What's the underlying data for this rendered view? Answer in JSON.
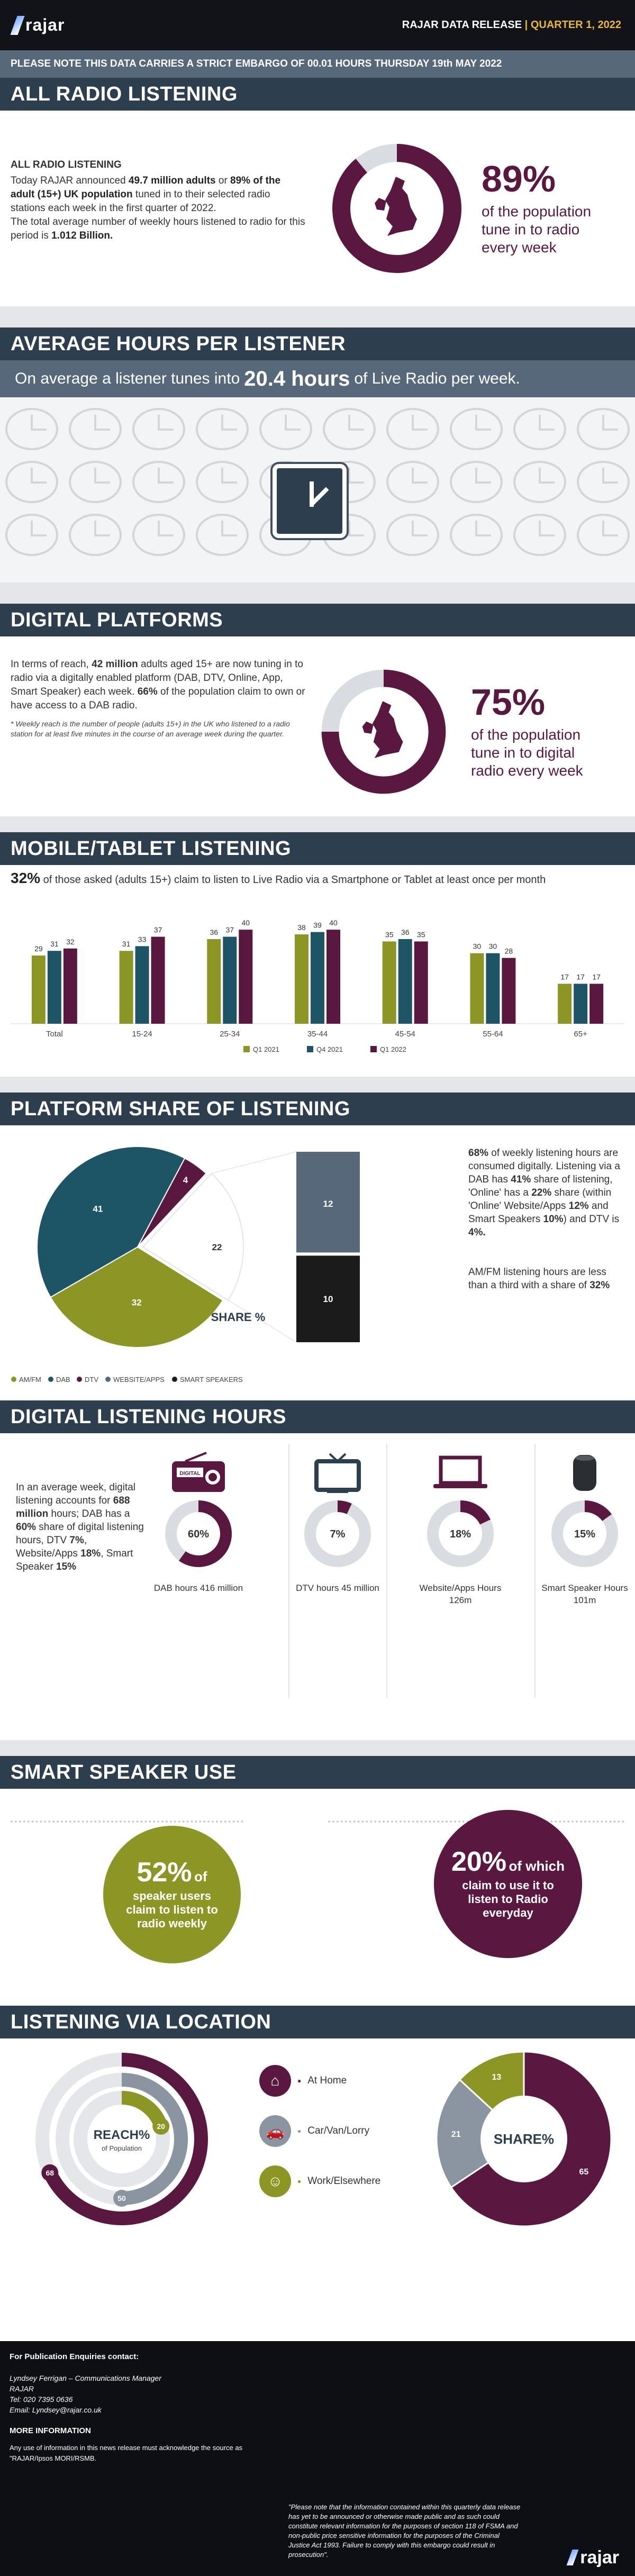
{
  "header": {
    "logo_text": "rajar",
    "release_label": "RAJAR DATA RELEASE",
    "quarter_label": "QUARTER 1, 2022"
  },
  "embargo": "PLEASE NOTE THIS DATA CARRIES A STRICT EMBARGO OF 00.01 HOURS THURSDAY 19th MAY 2022",
  "all_radio": {
    "title": "ALL RADIO LISTENING",
    "subtitle": "ALL RADIO LISTENING",
    "para1_a": "Today RAJAR announced ",
    "para1_b": "49.7 million adults",
    "para1_c": " or ",
    "para1_d": "89% of the adult (15+) UK population",
    "para1_e": " tuned in to their selected radio stations each week in the first quarter of 2022.",
    "para2_a": "The total average number of weekly hours listened to radio for this period is ",
    "para2_b": "1.012 Billion.",
    "pct": "89%",
    "pct_text": "of the population tune in to radio every week",
    "pct_value": 89
  },
  "avg_hours": {
    "title": "AVERAGE HOURS PER LISTENER",
    "text_a": "On average a listener tunes into",
    "text_b": "20.4 hours",
    "text_c": "of Live Radio per week."
  },
  "digital": {
    "title": "DIGITAL PLATFORMS",
    "para_a": "In terms of reach, ",
    "para_b": "42 million",
    "para_c": " adults aged 15+ are now tuning in to radio via a digitally enabled platform (DAB, DTV, Online, App, Smart Speaker) each week. ",
    "para_d": "66%",
    "para_e": " of the population claim to own or have access to a DAB radio.",
    "footnote": "* Weekly reach is the number of people (adults 15+) in the UK who listened to a radio station for at least five minutes in the course of an average week during the quarter.",
    "pct": "75%",
    "pct_text": "of the population tune in to digital radio every week",
    "pct_value": 75
  },
  "mobile": {
    "title": "MOBILE/TABLET LISTENING",
    "intro_a": "32%",
    "intro_b": " of those asked (adults 15+) claim to listen to Live Radio via a Smartphone or Tablet at least once per month"
  },
  "chart_data": [
    {
      "type": "bar",
      "categories": [
        "Total",
        "15-24",
        "25-34",
        "35-44",
        "45-54",
        "55-64",
        "65+"
      ],
      "series": [
        {
          "name": "Q1 2021",
          "values": [
            29,
            31,
            36,
            38,
            35,
            30,
            17
          ],
          "color": "#8c9624"
        },
        {
          "name": "Q4 2021",
          "values": [
            31,
            33,
            37,
            39,
            36,
            30,
            17
          ],
          "color": "#1e5566"
        },
        {
          "name": "Q1 2022",
          "values": [
            32,
            37,
            40,
            40,
            35,
            28,
            17
          ],
          "color": "#5a1840"
        }
      ],
      "ylim": [
        0,
        45
      ],
      "legend": "bottom"
    },
    {
      "type": "pie",
      "title": "SHARE %",
      "slices": [
        {
          "label": "AM/FM",
          "value": 32,
          "color": "#8c9624"
        },
        {
          "label": "DAB",
          "value": 41,
          "color": "#1e5566"
        },
        {
          "label": "DTV",
          "value": 4,
          "color": "#5a1840"
        },
        {
          "label": "WEBSITE/APPS",
          "value": 12,
          "color": "#56687a"
        },
        {
          "label": "SMART SPEAKERS",
          "value": 10,
          "color": "#1b1b1b"
        }
      ],
      "online_total": 22,
      "legend": "bottom"
    }
  ],
  "platform": {
    "title": "PLATFORM SHARE OF LISTENING",
    "side_a": "68%",
    "side_b": " of weekly listening hours are consumed digitally. Listening via a DAB has ",
    "side_c": "41%",
    "side_d": " share of listening, 'Online' has a ",
    "side_e": "22%",
    "side_f": " share (within 'Online' Website/Apps ",
    "side_g": "12%",
    "side_h": " and Smart Speakers ",
    "side_i": "10%",
    "side_j": ") and DTV is ",
    "side_k": "4%.",
    "side2_a": "AM/FM listening hours are less than a third with a share of ",
    "side2_b": "32%",
    "share_label": "SHARE %",
    "online_total": "22",
    "legend": [
      "AM/FM",
      "DAB",
      "DTV",
      "WEBSITE/APPS",
      "SMART SPEAKERS"
    ]
  },
  "dlh": {
    "title": "DIGITAL LISTENING HOURS",
    "intro_a": "In an average week, digital listening accounts for ",
    "intro_b": "688 million",
    "intro_c": " hours; DAB has a ",
    "intro_d": "60%",
    "intro_e": " share of digital listening hours, DTV ",
    "intro_f": "7%",
    "intro_g": ", Website/Apps ",
    "intro_h": "18%",
    "intro_i": ", Smart Speaker ",
    "intro_j": "15%",
    "items": [
      {
        "pct": "60%",
        "value": 60,
        "label": "DAB hours 416 million",
        "icon": "radio-icon"
      },
      {
        "pct": "7%",
        "value": 7,
        "label": "DTV hours 45 million",
        "icon": "tv-icon"
      },
      {
        "pct": "18%",
        "value": 18,
        "label": "Website/Apps Hours 126m",
        "icon": "laptop-icon"
      },
      {
        "pct": "15%",
        "value": 15,
        "label": "Smart Speaker Hours 101m",
        "icon": "smart-speaker-icon"
      }
    ],
    "radio_text": "DIGITAL"
  },
  "smart": {
    "title": "SMART SPEAKER USE",
    "left_pct": "52%",
    "left_of": "of",
    "left_text": "speaker users claim to listen to radio weekly",
    "right_pct": "20%",
    "right_of": "of which",
    "right_text": "claim to use it to listen to Radio everyday"
  },
  "location": {
    "title": "LISTENING VIA LOCATION",
    "reach_label": "REACH%",
    "reach_sub": "of Population",
    "reach_values": [
      {
        "value": 68,
        "color": "#5a1840"
      },
      {
        "value": 50,
        "color": "#8a95a1"
      },
      {
        "value": 20,
        "color": "#8c9624"
      }
    ],
    "legend": [
      {
        "label": "At Home",
        "icon": "home-icon",
        "color": "#5a1840"
      },
      {
        "label": "Car/Van/Lorry",
        "icon": "car-icon",
        "color": "#8a95a1"
      },
      {
        "label": "Work/Elsewhere",
        "icon": "worker-icon",
        "color": "#8c9624"
      }
    ],
    "share_label": "SHARE%",
    "share_values": [
      {
        "value": 65,
        "color": "#5a1840"
      },
      {
        "value": 21,
        "color": "#8a95a1"
      },
      {
        "value": 13,
        "color": "#8c9624"
      }
    ]
  },
  "footer": {
    "contact_head": "For Publication Enquiries contact:",
    "contact_name": "Lyndsey Ferrigan – Communications Manager",
    "contact_org": "RAJAR",
    "contact_tel": "Tel: 020 7395 0636",
    "contact_email": "Email: Lyndsey@rajar.co.uk",
    "more_head": "MORE INFORMATION",
    "more_text": "Any use of information in this news release must acknowledge the source as \"RAJAR/Ipsos MORI/RSMB.",
    "legal": "\"Please note that the information contained within this quarterly data release has yet to be announced or otherwise made public and as such could constitute relevant information for the purposes of section 118 of FSMA and non-public price sensitive information for the purposes of the Criminal Justice Act 1993. Failure to comply with this embargo could result in prosecution\".",
    "logo_text": "rajar"
  }
}
